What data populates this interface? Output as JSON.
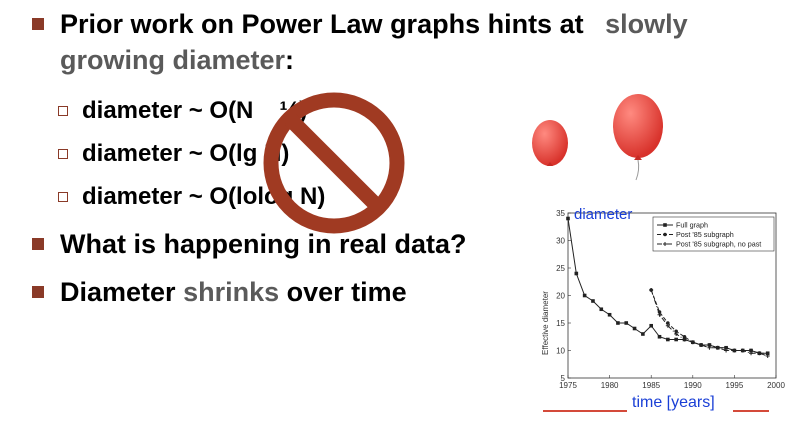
{
  "slide": {
    "bullet1_line1": "Prior work on Power Law graphs hints at",
    "bullet1_highlight1": "slowly",
    "bullet1_highlight2": "growing diameter",
    "bullet1_colon": ":",
    "sub_items": [
      "diameter ~ O(N",
      "diameter ~ O(l",
      "diameter ~ O(lo"
    ],
    "sub_item_suffix": [
      "¼)",
      "g N)",
      " log N)"
    ],
    "bullet2": "What is happening in real data?",
    "bullet3_pre": "Diameter ",
    "bullet3_highlight": "shrinks",
    "bullet3_post": " over time"
  },
  "colors": {
    "bullet_square": "#8a3a28",
    "highlight_text": "#5a5a5a",
    "no_sign": "#a03a22",
    "balloon": "#e8423a",
    "chart_title": "#1a3fd6",
    "axis_caption": "#1a3fd6",
    "caption_underline": "#d44a3a"
  },
  "chart_data": {
    "type": "line",
    "title": "diameter",
    "xlabel": "time [years]",
    "ylabel": "Effective diameter",
    "xlim": [
      1975,
      2000
    ],
    "ylim": [
      5,
      35
    ],
    "xticks": [
      "1975",
      "1980",
      "1985",
      "1990",
      "1995",
      "2000"
    ],
    "yticks": [
      "5",
      "10",
      "15",
      "20",
      "25",
      "30",
      "35"
    ],
    "legend_position": "top-right",
    "series": [
      {
        "name": "Full graph",
        "style": "solid-square",
        "x": [
          1975,
          1976,
          1977,
          1978,
          1979,
          1980,
          1981,
          1982,
          1983,
          1984,
          1985,
          1986,
          1987,
          1988,
          1989,
          1990,
          1991,
          1992,
          1993,
          1994,
          1995,
          1996,
          1997,
          1998,
          1999
        ],
        "values": [
          34,
          24,
          20,
          19,
          17.5,
          16.5,
          15,
          15,
          14,
          13,
          14.5,
          12.5,
          12,
          12,
          12,
          11.5,
          11,
          11,
          10.5,
          10.5,
          10,
          10,
          10,
          9.5,
          9.5
        ]
      },
      {
        "name": "Post '85 subgraph",
        "style": "dashed-circle",
        "x": [
          1985,
          1986,
          1987,
          1988,
          1989,
          1990,
          1991,
          1992,
          1993,
          1994,
          1995,
          1996,
          1997,
          1998,
          1999
        ],
        "values": [
          21,
          17,
          15,
          13.5,
          12.5,
          11.5,
          11,
          11,
          10.5,
          10.5,
          10,
          10,
          10,
          9.5,
          9.5
        ]
      },
      {
        "name": "Post '85 subgraph, no past",
        "style": "dashdot-plus",
        "x": [
          1985,
          1986,
          1987,
          1988,
          1989,
          1990,
          1991,
          1992,
          1993,
          1994,
          1995,
          1996,
          1997,
          1998,
          1999
        ],
        "values": [
          21,
          16.5,
          14.5,
          13,
          12,
          11.5,
          11,
          10.5,
          10.5,
          10,
          10,
          10,
          9.5,
          9.5,
          9
        ]
      }
    ]
  }
}
